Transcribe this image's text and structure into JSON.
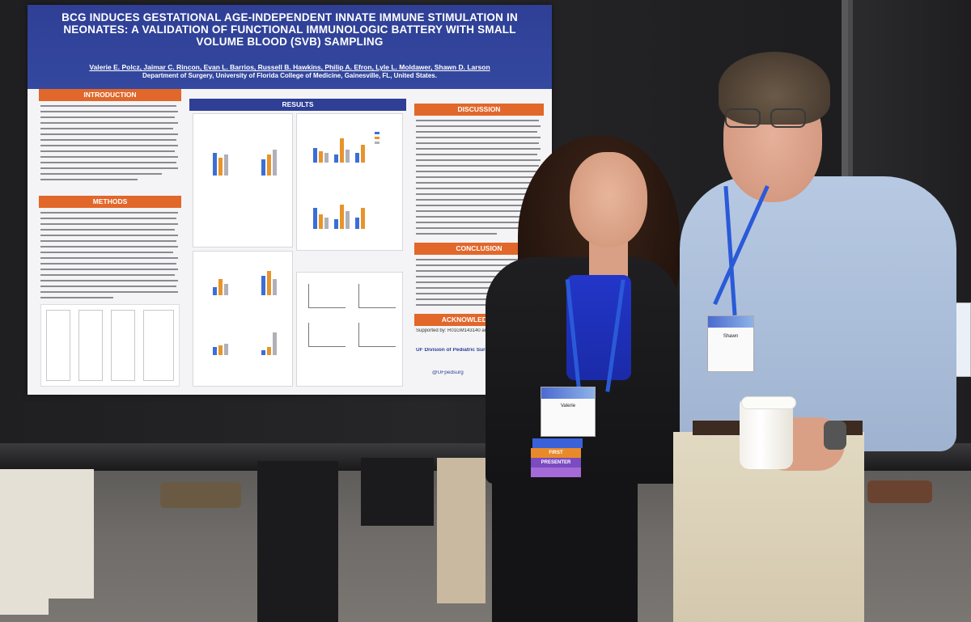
{
  "poster": {
    "title": "BCG INDUCES GESTATIONAL AGE-INDEPENDENT INNATE IMMUNE STIMULATION IN NEONATES: A VALIDATION OF FUNCTIONAL IMMUNOLOGIC BATTERY WITH SMALL VOLUME BLOOD (SVB) SAMPLING",
    "authors": "Valerie E. Polcz, Jaimar C. Rincon, Evan L. Barrios, Russell B. Hawkins, Philip A. Efron, Lyle L. Moldawer, Shawn D. Larson",
    "department": "Department of Surgery, University of Florida College of Medicine, Gainesville, FL, United States.",
    "sections": {
      "introduction": "INTRODUCTION",
      "methods": "METHODS",
      "results": "RESULTS",
      "discussion": "DISCUSSION",
      "conclusion": "CONCLUSION",
      "acknowledgement": "ACKNOWLEDGEMENT"
    },
    "support": "Supported by: R01GM143140 and T32GM",
    "twitter": "@UFpedsurg",
    "division": "UF Division of Pediatric Surgery"
  },
  "badges": {
    "woman_name": "Valerie",
    "man_name": "Shawn",
    "ribbon_1": "",
    "ribbon_2": "FIRST",
    "ribbon_3": "PRESENTER"
  },
  "colors": {
    "poster_header": "#2f3f96",
    "section_orange": "#e2672a",
    "lanyard": "#2a5ad8",
    "blouse": "#2236c9"
  }
}
